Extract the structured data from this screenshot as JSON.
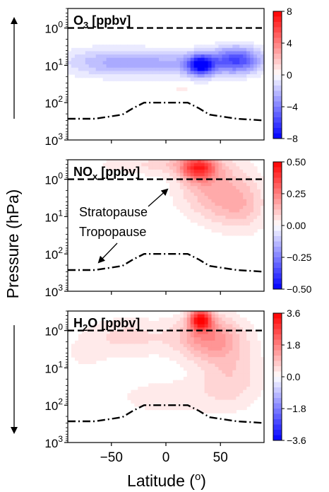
{
  "figure": {
    "ylabel": "Pressure (hPa)",
    "xlabel": "Latitude (o)",
    "xtick_labels": [
      "−50",
      "0",
      "50"
    ],
    "ytick_labels": [
      "10^0",
      "10^1",
      "10^2",
      "10^3"
    ]
  },
  "annotations": {
    "stratopause": "Stratopause",
    "tropopause": "Tropopause"
  },
  "colors": {
    "negative": "#0000ff",
    "neutral": "#ffffff",
    "positive": "#ff0000",
    "line": "#000000"
  },
  "chart_data": [
    {
      "type": "heatmap",
      "title": "O3 [ppbv]",
      "xlabel": "Latitude (o)",
      "ylabel": "Pressure (hPa)",
      "xlim": [
        -90,
        90
      ],
      "ylim": [
        1000,
        0.3
      ],
      "yscale": "log",
      "xticks": [
        -50,
        0,
        50
      ],
      "yticks": [
        1,
        10,
        100,
        1000
      ],
      "colorbar": {
        "ticks": [
          8,
          4,
          0,
          -4,
          -8
        ],
        "tick_labels": [
          "8",
          "4",
          "0",
          "−4",
          "−8"
        ],
        "range": [
          -8,
          8
        ],
        "cmap": "bwr"
      },
      "field": [
        {
          "lat": 32,
          "p": 10,
          "value": -7,
          "sx": 12,
          "sy": 0.28
        },
        {
          "lat": 65,
          "p": 7,
          "value": -5.2,
          "sx": 22,
          "sy": 0.35
        },
        {
          "lat": 5,
          "p": 9,
          "value": -2.5,
          "sx": 70,
          "sy": 0.35
        },
        {
          "lat": -55,
          "p": 8,
          "value": -1.6,
          "sx": 45,
          "sy": 0.4
        },
        {
          "lat": 15,
          "p": 45,
          "value": 1,
          "sx": 8,
          "sy": 0.1
        }
      ],
      "stratopause_p": 1,
      "tropopause": {
        "lat": [
          -90,
          -65,
          -40,
          -30,
          -20,
          20,
          30,
          40,
          65,
          90
        ],
        "p": [
          270,
          270,
          210,
          140,
          100,
          100,
          140,
          210,
          270,
          300
        ]
      }
    },
    {
      "type": "heatmap",
      "title": "NOx [ppbv]",
      "xlabel": "Latitude (o)",
      "ylabel": "Pressure (hPa)",
      "xlim": [
        -90,
        90
      ],
      "ylim": [
        1000,
        0.3
      ],
      "yscale": "log",
      "xticks": [
        -50,
        0,
        50
      ],
      "yticks": [
        1,
        10,
        100,
        1000
      ],
      "colorbar": {
        "ticks": [
          0.5,
          0.25,
          0,
          -0.25,
          -0.5
        ],
        "tick_labels": [
          "0.50",
          "0.25",
          "0.00",
          "−0.25",
          "−0.50"
        ],
        "range": [
          -0.5,
          0.5
        ],
        "cmap": "bwr"
      },
      "field": [
        {
          "lat": 30,
          "p": 0.5,
          "value": 0.34,
          "sx": 16,
          "sy": 0.35
        },
        {
          "lat": 45,
          "p": 2,
          "value": 0.16,
          "sx": 35,
          "sy": 0.8
        },
        {
          "lat": 70,
          "p": 6,
          "value": 0.1,
          "sx": 25,
          "sy": 0.7
        },
        {
          "lat": 10,
          "p": 0.4,
          "value": 0.07,
          "sx": 45,
          "sy": 0.3
        },
        {
          "lat": -35,
          "p": 0.4,
          "value": 0.04,
          "sx": 60,
          "sy": 0.3
        }
      ],
      "stratopause_p": 1,
      "tropopause": {
        "lat": [
          -90,
          -65,
          -40,
          -30,
          -20,
          20,
          30,
          40,
          65,
          90
        ],
        "p": [
          270,
          270,
          210,
          140,
          100,
          100,
          140,
          210,
          270,
          300
        ]
      }
    },
    {
      "type": "heatmap",
      "title": "H2O [ppbv]",
      "xlabel": "Latitude (o)",
      "ylabel": "Pressure (hPa)",
      "xlim": [
        -90,
        90
      ],
      "ylim": [
        1000,
        0.3
      ],
      "yscale": "log",
      "xticks": [
        -50,
        0,
        50
      ],
      "yticks": [
        1,
        10,
        100,
        1000
      ],
      "colorbar": {
        "ticks": [
          3.6,
          1.8,
          0,
          -1.8,
          -3.6
        ],
        "tick_labels": [
          "3.6",
          "1.8",
          "0.0",
          "−1.8",
          "−3.6"
        ],
        "range": [
          -3.6,
          3.6
        ],
        "cmap": "bwr"
      },
      "field": [
        {
          "lat": 32,
          "p": 0.5,
          "value": 3.2,
          "sx": 10,
          "sy": 0.3
        },
        {
          "lat": 40,
          "p": 1.5,
          "value": 1.6,
          "sx": 30,
          "sy": 0.6
        },
        {
          "lat": 60,
          "p": 15,
          "value": 0.8,
          "sx": 30,
          "sy": 0.9
        },
        {
          "lat": -35,
          "p": 1.5,
          "value": 0.7,
          "sx": 45,
          "sy": 0.55
        },
        {
          "lat": 0,
          "p": 60,
          "value": 0.45,
          "sx": 55,
          "sy": 0.55
        },
        {
          "lat": -75,
          "p": 5,
          "value": 0.3,
          "sx": 20,
          "sy": 0.4
        }
      ],
      "stratopause_p": 1,
      "tropopause": {
        "lat": [
          -90,
          -65,
          -40,
          -30,
          -20,
          20,
          30,
          40,
          65,
          90
        ],
        "p": [
          270,
          270,
          210,
          140,
          100,
          100,
          140,
          210,
          270,
          300
        ]
      }
    }
  ]
}
